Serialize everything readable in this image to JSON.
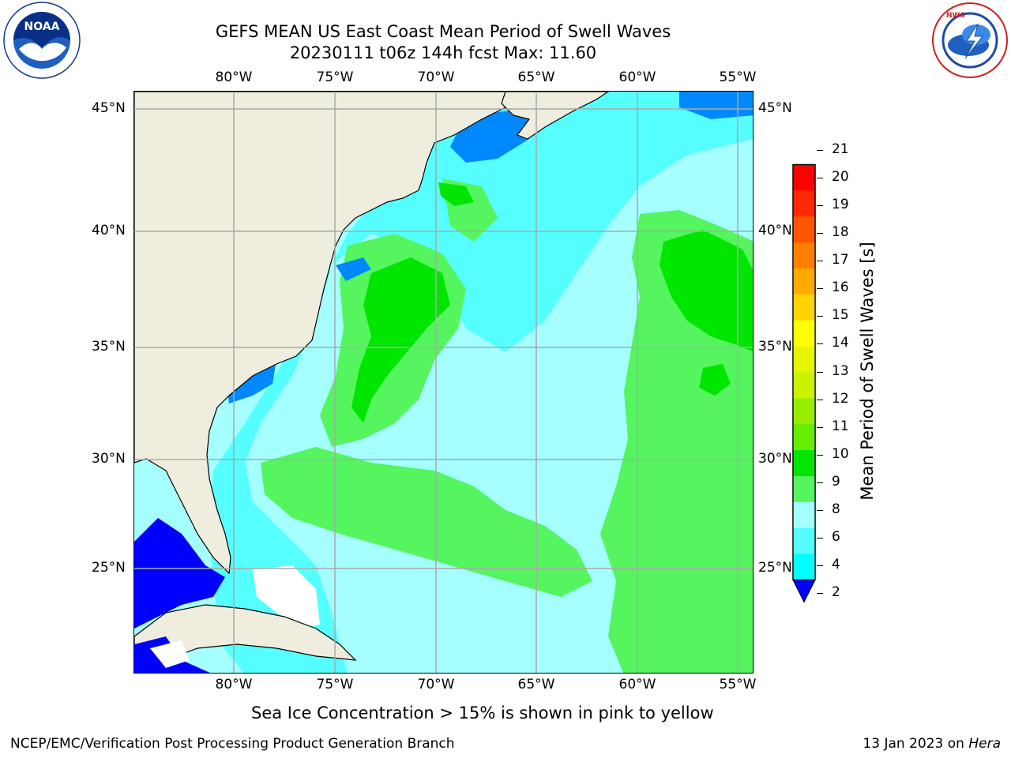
{
  "title": {
    "line1": "GEFS MEAN US East Coast Mean Period of Swell Waves",
    "line2": "20230111 t06z 144h fcst   Max: 11.60"
  },
  "logos": {
    "noaa": {
      "icon": "noaa-logo-icon",
      "text": "NOAA",
      "ring_text": "NATIONAL OCEANIC AND ATMOSPHERIC ADMINISTRATION · U.S. DEPARTMENT OF COMMERCE"
    },
    "nws": {
      "icon": "nws-logo-icon",
      "ring_text": "NATIONAL WEATHER SERVICE"
    }
  },
  "map": {
    "lon_labels": [
      "80°W",
      "75°W",
      "70°W",
      "65°W",
      "60°W",
      "55°W"
    ],
    "lat_labels": [
      "45°N",
      "40°N",
      "35°N",
      "30°N",
      "25°N"
    ],
    "lon_range": [
      -85,
      -54.5
    ],
    "lat_range": [
      20.2,
      46
    ],
    "colors": {
      "land": "#efedde",
      "coast": "#000000",
      "grid": "#a9a9a9",
      "missing": "#ffffff"
    }
  },
  "colorbar": {
    "label": "Mean Period of Swell Waves [s]",
    "ticks": [
      "21",
      "20",
      "19",
      "18",
      "17",
      "16",
      "15",
      "14",
      "13",
      "12",
      "11",
      "10",
      "9",
      "8",
      "6",
      "4",
      "2"
    ],
    "colors": [
      "#ff0000",
      "#ff2a00",
      "#ff5500",
      "#ff8000",
      "#ffaa00",
      "#ffd400",
      "#ffff00",
      "#e6f500",
      "#ccf200",
      "#99ee00",
      "#66ee00",
      "#00e600",
      "#55f55f",
      "#a5ffff",
      "#55ffff",
      "#00ffff",
      "#0088ff"
    ],
    "under_color": "#0000ff"
  },
  "ice_note": "Sea Ice Concentration > 15% is shown in pink to yellow",
  "footer": {
    "left": "NCEP/EMC/Verification Post Processing Product Generation Branch",
    "right_date": "13 Jan 2023 on",
    "right_machine": "Hera"
  }
}
